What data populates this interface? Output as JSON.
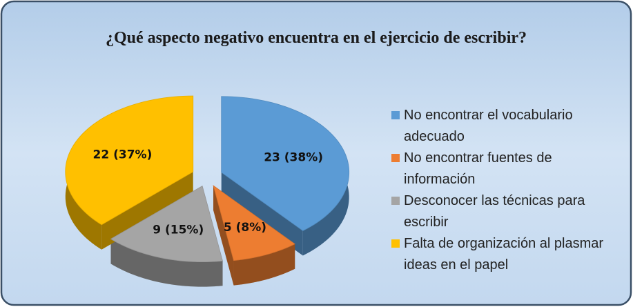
{
  "chart_data": {
    "type": "pie",
    "title": "¿Qué aspecto negativo encuentra en el ejercicio de escribir?",
    "categories": [
      "No encontrar el vocabulario adecuado",
      "No encontrar fuentes de información",
      "Desconocer las técnicas para escribir",
      "Falta de organización al plasmar ideas en el papel"
    ],
    "values": [
      23,
      5,
      9,
      22
    ],
    "value_labels": [
      "23 (38%)",
      "5 (8%)",
      "9 (15%)",
      "22 (37%)"
    ],
    "colors": [
      "#5b9bd5",
      "#ed7d31",
      "#a5a5a5",
      "#ffc000"
    ],
    "legend": "right"
  }
}
